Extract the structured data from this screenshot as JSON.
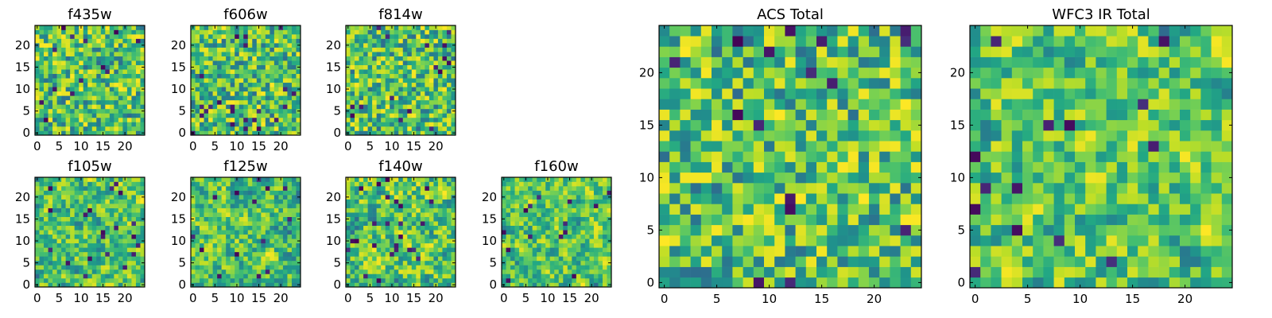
{
  "chart_data": [
    {
      "type": "heatmap",
      "title": "f435w",
      "cells": 25,
      "xticks": [
        0,
        5,
        10,
        15,
        20
      ],
      "yticks": [
        0,
        5,
        10,
        15,
        20
      ],
      "xlim": [
        -0.5,
        24.5
      ],
      "ylim": [
        -0.5,
        24.5
      ],
      "colormap": "viridis",
      "seed": 11
    },
    {
      "type": "heatmap",
      "title": "f606w",
      "cells": 25,
      "xticks": [
        0,
        5,
        10,
        15,
        20
      ],
      "yticks": [
        0,
        5,
        10,
        15,
        20
      ],
      "xlim": [
        -0.5,
        24.5
      ],
      "ylim": [
        -0.5,
        24.5
      ],
      "colormap": "viridis",
      "seed": 23
    },
    {
      "type": "heatmap",
      "title": "f814w",
      "cells": 25,
      "xticks": [
        0,
        5,
        10,
        15,
        20
      ],
      "yticks": [
        0,
        5,
        10,
        15,
        20
      ],
      "xlim": [
        -0.5,
        24.5
      ],
      "ylim": [
        -0.5,
        24.5
      ],
      "colormap": "viridis",
      "seed": 37
    },
    {
      "type": "heatmap",
      "title": "f105w",
      "cells": 25,
      "xticks": [
        0,
        5,
        10,
        15,
        20
      ],
      "yticks": [
        0,
        5,
        10,
        15,
        20
      ],
      "xlim": [
        -0.5,
        24.5
      ],
      "ylim": [
        -0.5,
        24.5
      ],
      "colormap": "viridis",
      "seed": 41
    },
    {
      "type": "heatmap",
      "title": "f125w",
      "cells": 25,
      "xticks": [
        0,
        5,
        10,
        15,
        20
      ],
      "yticks": [
        0,
        5,
        10,
        15,
        20
      ],
      "xlim": [
        -0.5,
        24.5
      ],
      "ylim": [
        -0.5,
        24.5
      ],
      "colormap": "viridis",
      "seed": 53
    },
    {
      "type": "heatmap",
      "title": "f140w",
      "cells": 25,
      "xticks": [
        0,
        5,
        10,
        15,
        20
      ],
      "yticks": [
        0,
        5,
        10,
        15,
        20
      ],
      "xlim": [
        -0.5,
        24.5
      ],
      "ylim": [
        -0.5,
        24.5
      ],
      "colormap": "viridis",
      "seed": 67
    },
    {
      "type": "heatmap",
      "title": "f160w",
      "cells": 25,
      "xticks": [
        0,
        5,
        10,
        15,
        20
      ],
      "yticks": [
        0,
        5,
        10,
        15,
        20
      ],
      "xlim": [
        -0.5,
        24.5
      ],
      "ylim": [
        -0.5,
        24.5
      ],
      "colormap": "viridis",
      "seed": 79
    },
    {
      "type": "heatmap",
      "title": "ACS Total",
      "cells": 25,
      "xticks": [
        0,
        5,
        10,
        15,
        20
      ],
      "yticks": [
        0,
        5,
        10,
        15,
        20
      ],
      "xlim": [
        -0.5,
        24.5
      ],
      "ylim": [
        -0.5,
        24.5
      ],
      "colormap": "viridis",
      "seed": 97
    },
    {
      "type": "heatmap",
      "title": "WFC3 IR Total",
      "cells": 25,
      "xticks": [
        0,
        5,
        10,
        15,
        20
      ],
      "yticks": [
        0,
        5,
        10,
        15,
        20
      ],
      "xlim": [
        -0.5,
        24.5
      ],
      "ylim": [
        -0.5,
        24.5
      ],
      "colormap": "viridis",
      "seed": 113
    }
  ]
}
